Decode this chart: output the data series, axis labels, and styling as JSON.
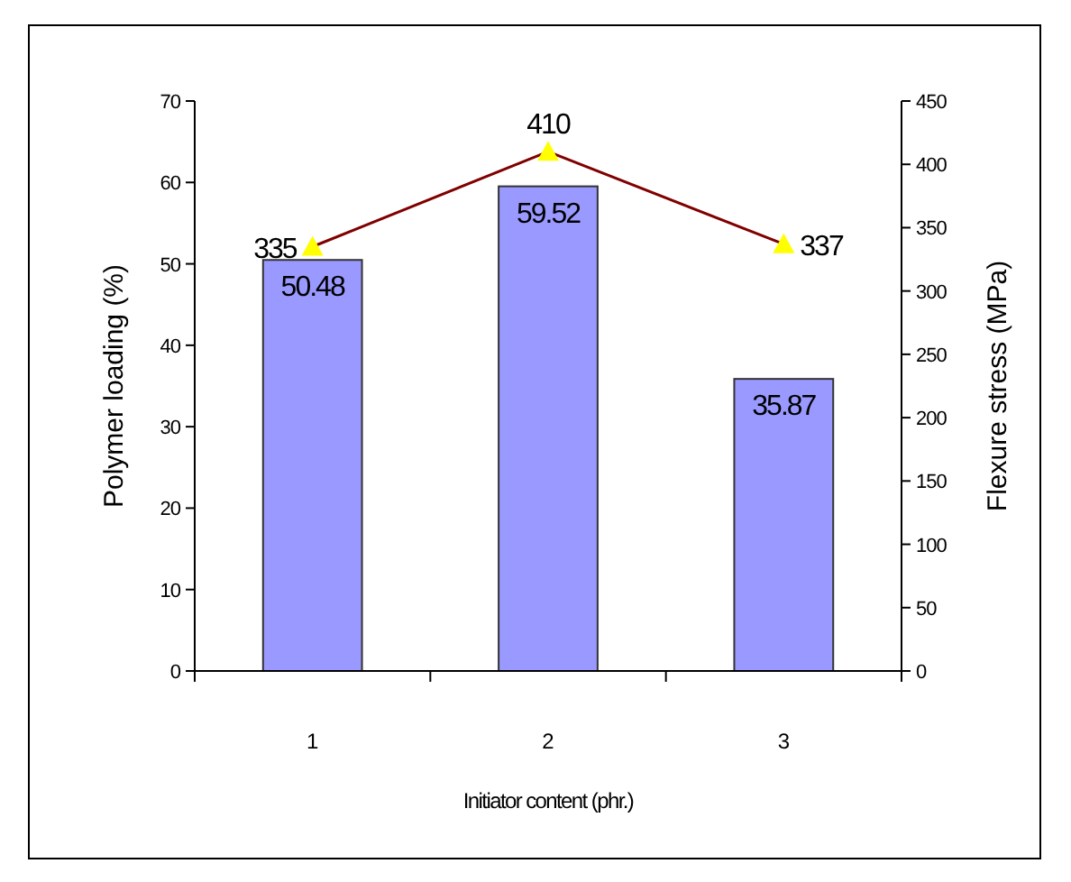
{
  "chart_data": {
    "type": "bar",
    "xlabel": "Initiator content (phr.)",
    "ylabel": "Polymer loading (%)",
    "y2label": "Flexure stress (MPa)",
    "categories": [
      "1",
      "2",
      "3"
    ],
    "series": [
      {
        "color": "#9999ff",
        "values": [
          50.48,
          59.52,
          35.87
        ]
      },
      {
        "type": "line",
        "axis": "y2",
        "color": "#800000",
        "marker": "triangle",
        "values": [
          335,
          410,
          337
        ]
      }
    ],
    "ylim": [
      0,
      70
    ],
    "yticks": [
      0,
      10,
      20,
      30,
      40,
      50,
      60,
      70
    ],
    "y2lim": [
      0,
      450
    ],
    "y2ticks": [
      0,
      50,
      100,
      150,
      200,
      250,
      300,
      350,
      400,
      450
    ],
    "data_labels": true,
    "grid": false
  }
}
